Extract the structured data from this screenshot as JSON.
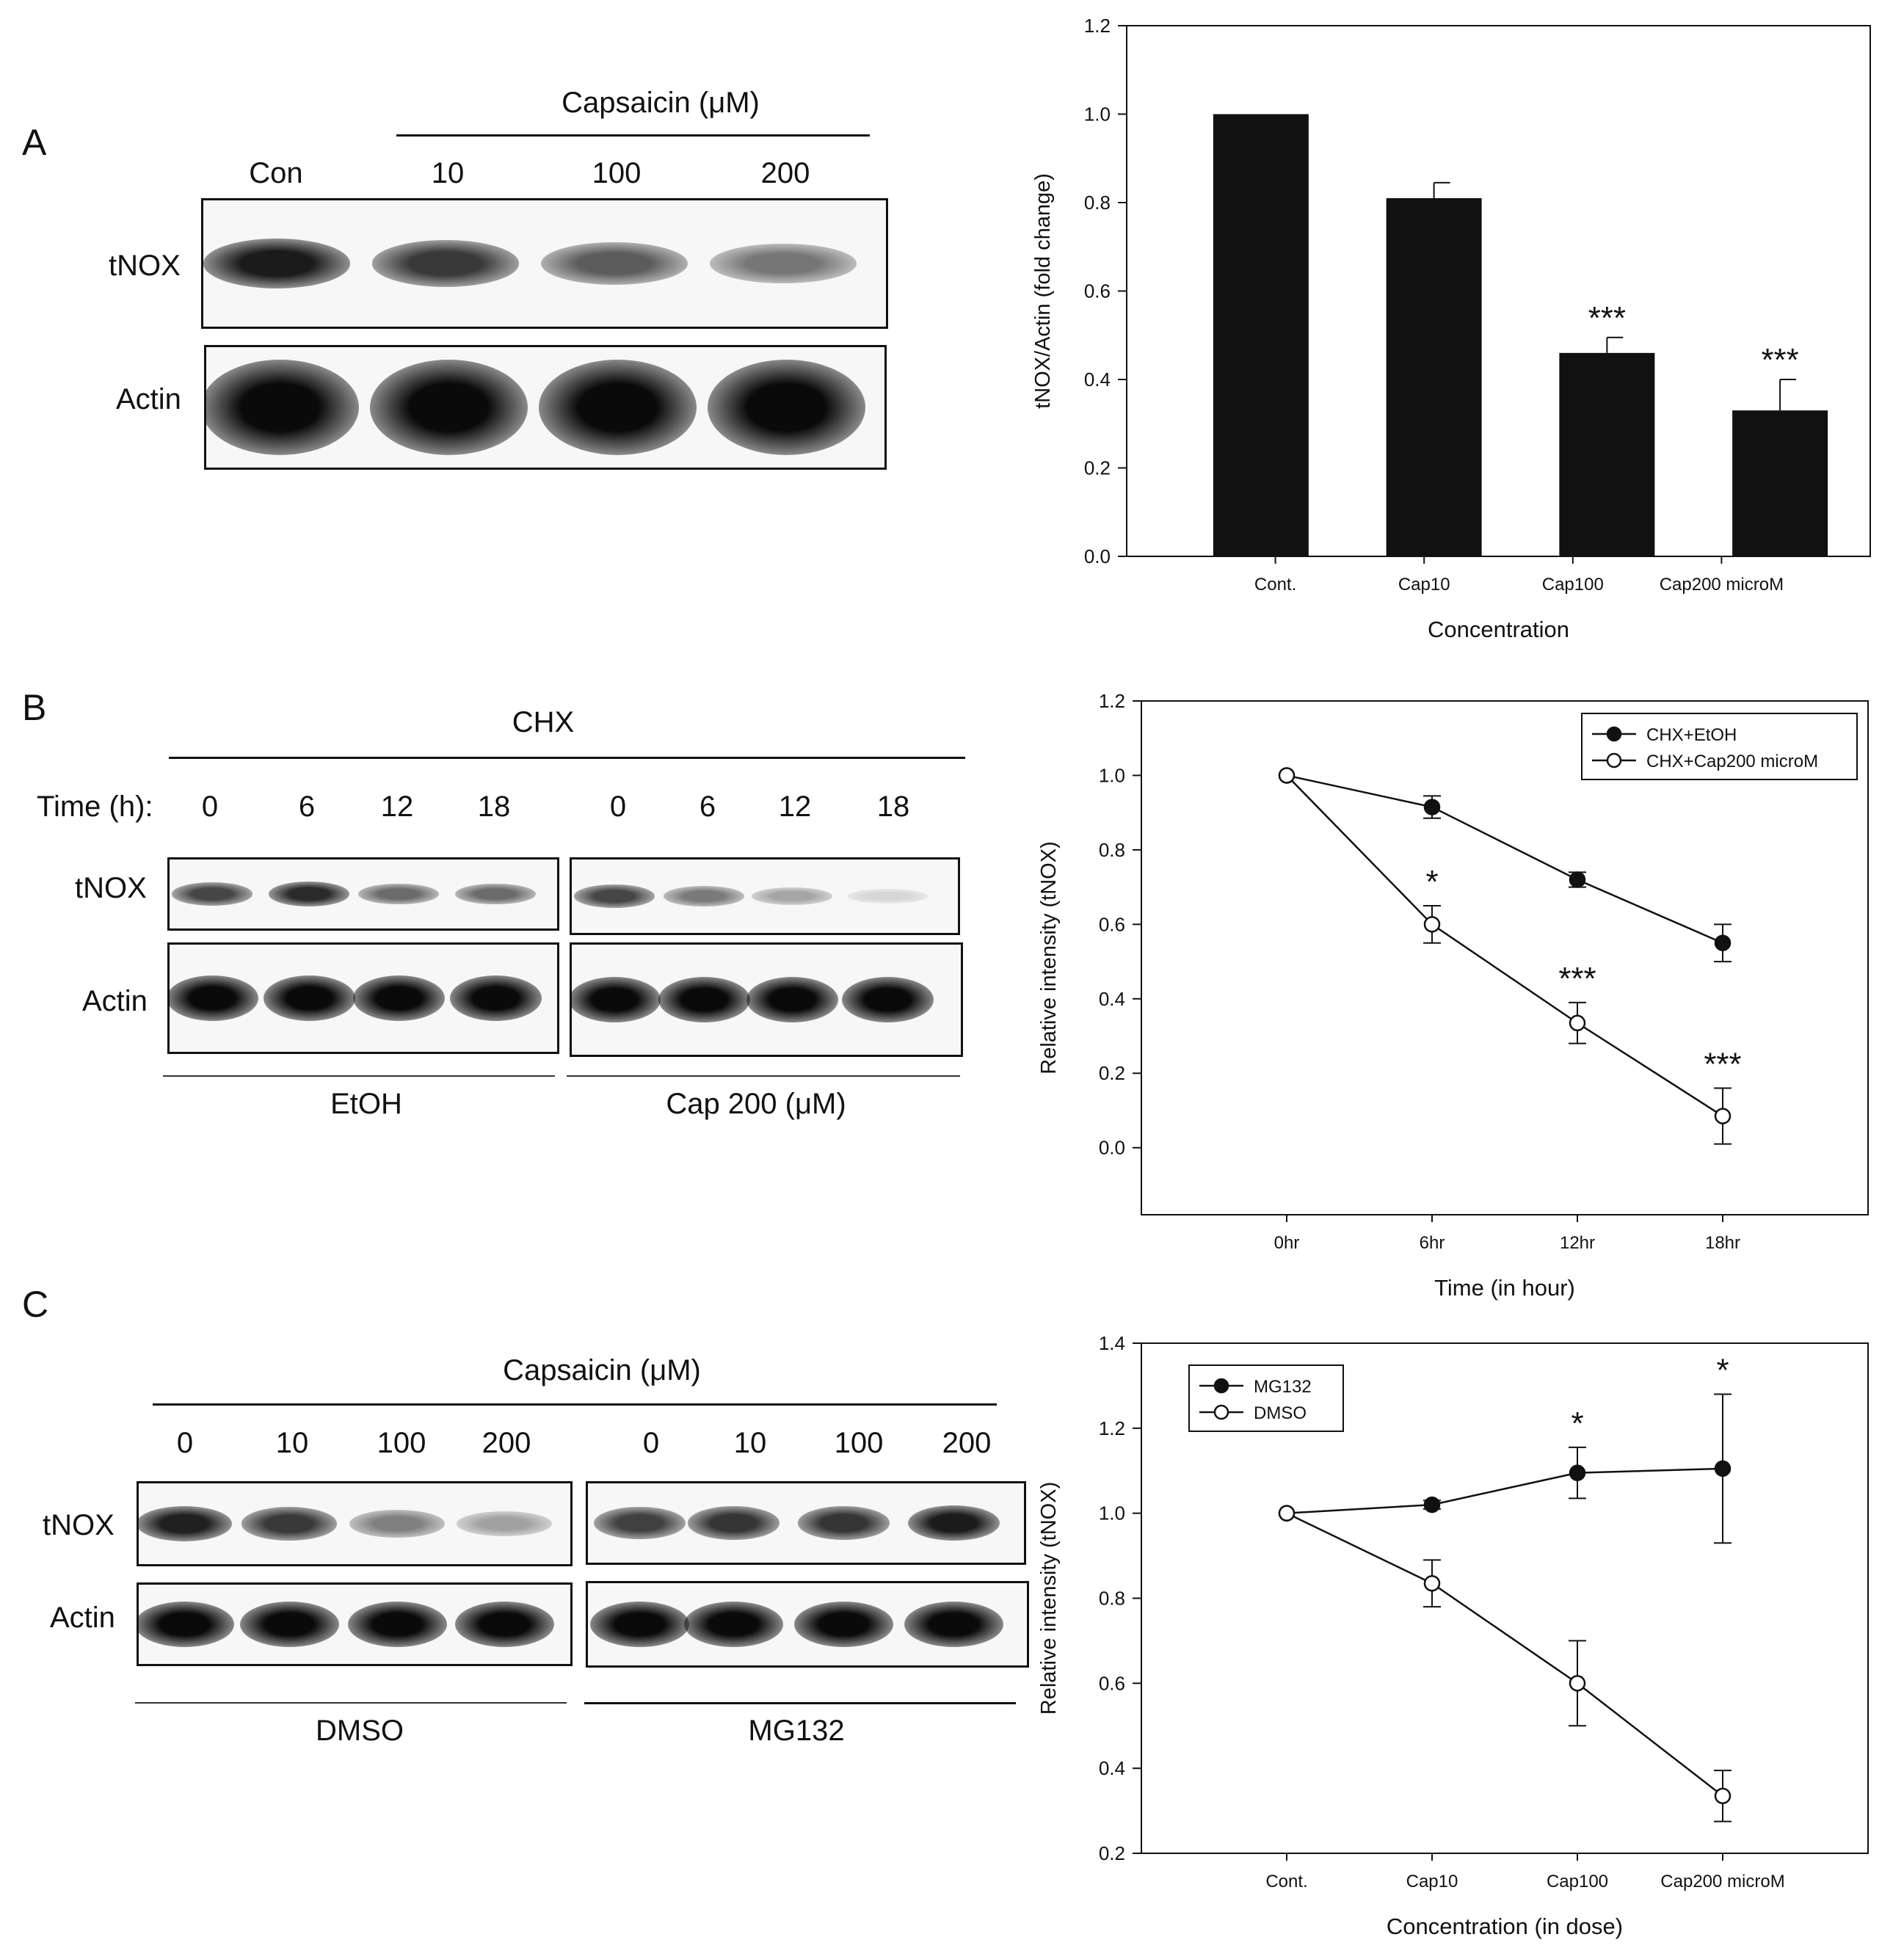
{
  "panels": {
    "a": {
      "letter": "A",
      "header": "Capsaicin (μM)",
      "lanes": [
        "Con",
        "10",
        "100",
        "200"
      ],
      "row_labels": [
        "tNOX",
        "Actin"
      ],
      "tnox_intensity": [
        0.92,
        0.78,
        0.62,
        0.5
      ],
      "actin_intensity": [
        1,
        1,
        1,
        1
      ]
    },
    "b": {
      "letter": "B",
      "header": "CHX",
      "time_label": "Time (h):",
      "lanes_left": [
        "0",
        "6",
        "12",
        "18"
      ],
      "lanes_right": [
        "0",
        "6",
        "12",
        "18"
      ],
      "row_labels": [
        "tNOX",
        "Actin"
      ],
      "group_left": "EtOH",
      "group_right": "Cap 200 (μM)",
      "tnox_left_intensity": [
        0.72,
        0.85,
        0.55,
        0.55
      ],
      "tnox_right_intensity": [
        0.72,
        0.48,
        0.28,
        0.05
      ]
    },
    "c": {
      "letter": "C",
      "header": "Capsaicin (μM)",
      "lanes_left": [
        "0",
        "10",
        "100",
        "200"
      ],
      "lanes_right": [
        "0",
        "10",
        "100",
        "200"
      ],
      "row_labels": [
        "tNOX",
        "Actin"
      ],
      "group_left": "DMSO",
      "group_right": "MG132",
      "tnox_left_intensity": [
        0.9,
        0.78,
        0.45,
        0.3
      ],
      "tnox_right_intensity": [
        0.75,
        0.8,
        0.8,
        0.92
      ]
    }
  },
  "chart_data": [
    {
      "type": "bar",
      "categories": [
        "Cont.",
        "Cap10",
        "Cap100",
        "Cap200 microM"
      ],
      "values": [
        1.0,
        0.81,
        0.46,
        0.33
      ],
      "errors": [
        0,
        0.035,
        0.035,
        0.07
      ],
      "annotations": [
        "",
        "",
        "***",
        "***"
      ],
      "xlabel": "Concentration",
      "ylabel": "tNOX/Actin (fold change)",
      "ylim": [
        0,
        1.2
      ],
      "yticks": [
        "0.0",
        "0.2",
        "0.4",
        "0.6",
        "0.8",
        "1.0",
        "1.2"
      ],
      "bar_color": "#111111"
    },
    {
      "type": "line",
      "categories": [
        "0hr",
        "6hr",
        "12hr",
        "18hr"
      ],
      "series": [
        {
          "name": "CHX+EtOH",
          "values": [
            1.0,
            0.915,
            0.72,
            0.55
          ],
          "errors": [
            0,
            0.03,
            0.02,
            0.05
          ],
          "marker": "filled"
        },
        {
          "name": "CHX+Cap200 microM",
          "values": [
            1.0,
            0.6,
            0.335,
            0.085
          ],
          "errors": [
            0,
            0.05,
            0.055,
            0.075
          ],
          "marker": "open",
          "annotations": [
            "",
            "*",
            "***",
            "***"
          ]
        }
      ],
      "xlabel": "Time (in hour)",
      "ylabel": "Relative intensity (tNOX)",
      "ylim": [
        -0.18,
        1.2
      ],
      "yticks": [
        "0.0",
        "0.2",
        "0.4",
        "0.6",
        "0.8",
        "1.0",
        "1.2"
      ],
      "legend": "top-right"
    },
    {
      "type": "line",
      "categories": [
        "Cont.",
        "Cap10",
        "Cap100",
        "Cap200 microM"
      ],
      "series": [
        {
          "name": "MG132",
          "values": [
            1.0,
            1.02,
            1.095,
            1.105
          ],
          "errors": [
            0,
            0.01,
            0.06,
            0.175
          ],
          "marker": "filled",
          "annotations": [
            "",
            "",
            "*",
            "*"
          ]
        },
        {
          "name": "DMSO",
          "values": [
            1.0,
            0.835,
            0.6,
            0.335
          ],
          "errors": [
            0,
            0.055,
            0.1,
            0.06
          ],
          "marker": "open"
        }
      ],
      "xlabel": "Concentration (in dose)",
      "ylabel": "Relative intensity (tNOX)",
      "ylim": [
        0.2,
        1.4
      ],
      "yticks": [
        "0.2",
        "0.4",
        "0.6",
        "0.8",
        "1.0",
        "1.2",
        "1.4"
      ],
      "legend": "top-left"
    }
  ]
}
